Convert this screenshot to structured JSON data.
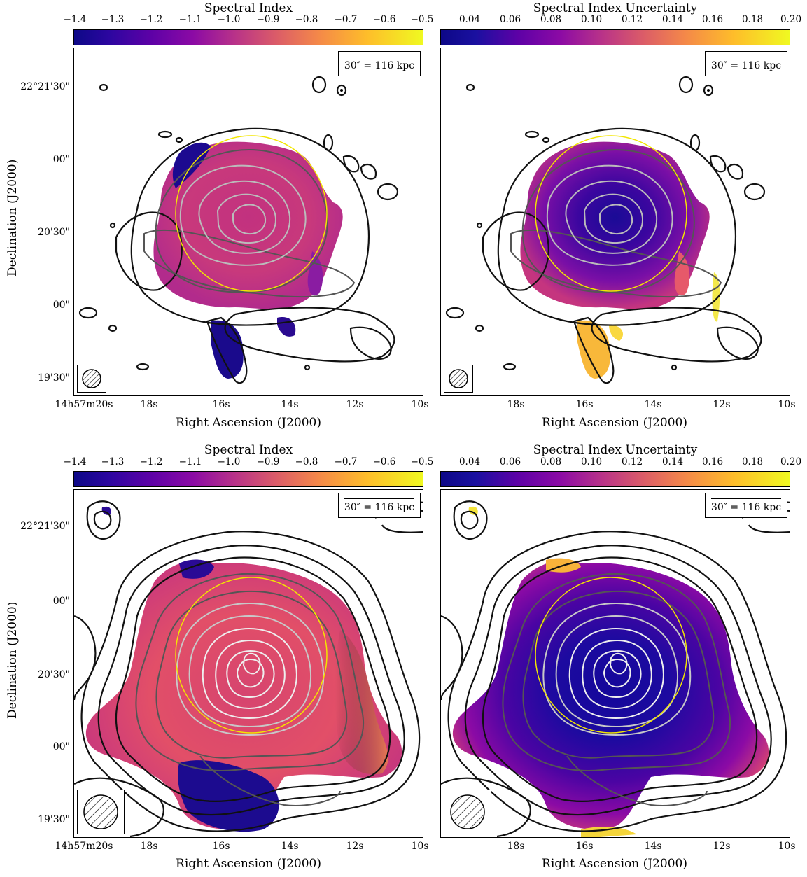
{
  "panels": [
    {
      "id": "top-left",
      "colorbar": {
        "title": "Spectral Index",
        "ticks": [
          "−1.4",
          "−1.3",
          "−1.2",
          "−1.1",
          "−1.0",
          "−0.9",
          "−0.8",
          "−0.7",
          "−0.6",
          "−0.5"
        ],
        "colormap": "plasma-like"
      },
      "scalebar": "30″ = 116 kpc",
      "ylabel": "Declination (J2000)",
      "yticks": [
        "22°21'30\"",
        "00\"",
        "20'30\"",
        "00\"",
        "19'30\""
      ],
      "xlabel": "Right Ascension (J2000)",
      "xticks": [
        "14h57m20s",
        "18s",
        "16s",
        "14s",
        "12s",
        "10s"
      ]
    },
    {
      "id": "top-right",
      "colorbar": {
        "title": "Spectral Index Uncertainty",
        "ticks": [
          "0.04",
          "0.06",
          "0.08",
          "0.10",
          "0.12",
          "0.14",
          "0.16",
          "0.18",
          "0.20"
        ],
        "colormap": "plasma-like"
      },
      "scalebar": "30″ = 116 kpc",
      "xlabel": "Right Ascension (J2000)",
      "xticks": [
        "18s",
        "16s",
        "14s",
        "12s",
        "10s"
      ]
    },
    {
      "id": "bottom-left",
      "colorbar": {
        "title": "Spectral Index",
        "ticks": [
          "−1.4",
          "−1.3",
          "−1.2",
          "−1.1",
          "−1.0",
          "−0.9",
          "−0.8",
          "−0.7",
          "−0.6",
          "−0.5"
        ],
        "colormap": "plasma-like"
      },
      "scalebar": "30″ = 116 kpc",
      "ylabel": "Declination (J2000)",
      "yticks": [
        "22°21'30\"",
        "00\"",
        "20'30\"",
        "00\"",
        "19'30\""
      ],
      "xlabel": "Right Ascension (J2000)",
      "xticks": [
        "14h57m20s",
        "18s",
        "16s",
        "14s",
        "12s",
        "10s"
      ]
    },
    {
      "id": "bottom-right",
      "colorbar": {
        "title": "Spectral Index Uncertainty",
        "ticks": [
          "0.04",
          "0.06",
          "0.08",
          "0.10",
          "0.12",
          "0.14",
          "0.16",
          "0.18",
          "0.20"
        ],
        "colormap": "plasma-like"
      },
      "scalebar": "30″ = 116 kpc",
      "xlabel": "Right Ascension (J2000)",
      "xticks": [
        "18s",
        "16s",
        "14s",
        "12s",
        "10s"
      ]
    }
  ],
  "colors": {
    "contour_dark": "#111111",
    "contour_light": "#cccccc",
    "circle": "#f2e600",
    "plasma_low": "#0d0887",
    "plasma_mid": "#cc4778",
    "plasma_high": "#f0f921"
  }
}
